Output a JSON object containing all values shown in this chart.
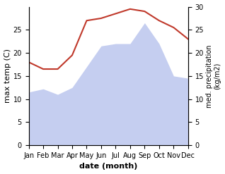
{
  "months": [
    "Jan",
    "Feb",
    "Mar",
    "Apr",
    "May",
    "Jun",
    "Jul",
    "Aug",
    "Sep",
    "Oct",
    "Nov",
    "Dec"
  ],
  "max_temp": [
    11.5,
    12.2,
    11.0,
    12.5,
    17.0,
    21.5,
    22.0,
    22.0,
    26.5,
    22.0,
    15.0,
    14.5
  ],
  "precipitation": [
    18.0,
    16.5,
    16.5,
    19.5,
    27.0,
    27.5,
    28.5,
    29.5,
    29.0,
    27.0,
    25.5,
    23.0
  ],
  "temp_fill_color": "#c5cef0",
  "line_color": "#c0392b",
  "temp_ylim": [
    0,
    30
  ],
  "precip_ylim": [
    0,
    30
  ],
  "ylabel_left": "max temp (C)",
  "ylabel_right": "med. precipitation\n(kg/m2)",
  "xlabel": "date (month)",
  "temp_yticks": [
    0,
    5,
    10,
    15,
    20,
    25
  ],
  "precip_yticks": [
    0,
    5,
    10,
    15,
    20,
    25,
    30
  ],
  "tick_fontsize": 7,
  "label_fontsize": 8,
  "xlabel_fontsize": 8
}
